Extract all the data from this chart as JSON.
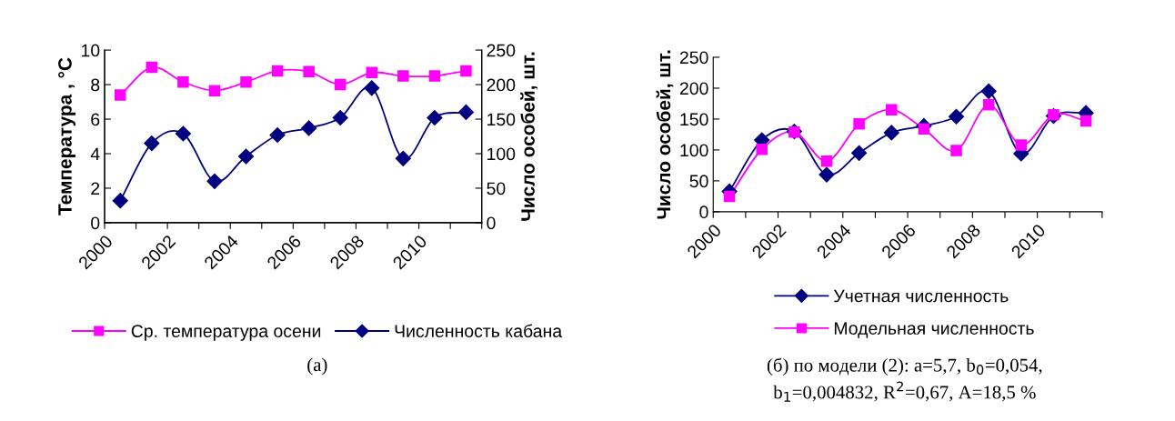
{
  "chart_data": [
    {
      "type": "line",
      "ylabel": "Температура , °С",
      "y2label": "Число особей, шт.",
      "xlim": [
        2000,
        2012
      ],
      "xticks": [
        2000,
        {
          "value": 2001,
          "label": null
        },
        2002,
        {
          "value": 2003,
          "label": null
        },
        2004,
        {
          "value": 2005,
          "label": null
        },
        2006,
        {
          "value": 2007,
          "label": null
        },
        2008,
        {
          "value": 2009,
          "label": null
        },
        2010,
        {
          "value": 2011,
          "label": null
        },
        {
          "value": 2012,
          "label": null
        }
      ],
      "x": [
        2000.5,
        2001.5,
        2002.5,
        2003.5,
        2004.5,
        2005.5,
        2006.5,
        2007.5,
        2008.5,
        2009.5,
        2010.5,
        2011.5
      ],
      "ylim": [
        0,
        10
      ],
      "yticks": [
        0,
        2,
        4,
        6,
        8,
        10
      ],
      "y2lim": [
        0,
        250
      ],
      "y2ticks": [
        0,
        50,
        100,
        150,
        200,
        250
      ],
      "series": [
        {
          "name": "Ср. температура осени",
          "color": "#ff00ff",
          "marker": "square",
          "values": [
            7.4,
            9.0,
            8.15,
            7.65,
            8.15,
            8.8,
            8.75,
            8.0,
            8.7,
            8.5,
            8.5,
            8.8
          ]
        },
        {
          "name": "Численность кабана",
          "color": "#000080",
          "marker": "diamond",
          "axis": "y2",
          "values": [
            32,
            115,
            129,
            60,
            96,
            127,
            137,
            152,
            195,
            93,
            152,
            160
          ]
        }
      ],
      "legend": "bottom",
      "grid": false,
      "annotations": [
        "(а)"
      ]
    },
    {
      "type": "line",
      "ylabel": "Число особей, шт.",
      "xlim": [
        2000,
        2012
      ],
      "xticks": [
        2000,
        {
          "value": 2001,
          "label": null
        },
        2002,
        {
          "value": 2003,
          "label": null
        },
        2004,
        {
          "value": 2005,
          "label": null
        },
        2006,
        {
          "value": 2007,
          "label": null
        },
        2008,
        {
          "value": 2009,
          "label": null
        },
        2010,
        {
          "value": 2011,
          "label": null
        },
        {
          "value": 2012,
          "label": null
        }
      ],
      "x": [
        2000.5,
        2001.5,
        2002.5,
        2003.5,
        2004.5,
        2005.5,
        2006.5,
        2007.5,
        2008.5,
        2009.5,
        2010.5,
        2011.5
      ],
      "ylim": [
        0,
        250
      ],
      "yticks": [
        0,
        50,
        100,
        150,
        200,
        250
      ],
      "series": [
        {
          "name": "Учетная численность",
          "color": "#000080",
          "marker": "diamond",
          "values": [
            33,
            116,
            130,
            60,
            95,
            128,
            139,
            154,
            195,
            94,
            155,
            160
          ]
        },
        {
          "name": "Модельная численность",
          "color": "#ff00ff",
          "marker": "square",
          "values": [
            25,
            101,
            129,
            82,
            142,
            165,
            134,
            99,
            173,
            108,
            157,
            147
          ]
        }
      ],
      "legend": "bottom",
      "grid": false,
      "annotations": [
        "(б) по модели (2): a=5,7, b$_{0}$=0,054,\nb$_{1}$=0,004832, R$^{2}$=0,67, A=18,5 %"
      ]
    }
  ]
}
